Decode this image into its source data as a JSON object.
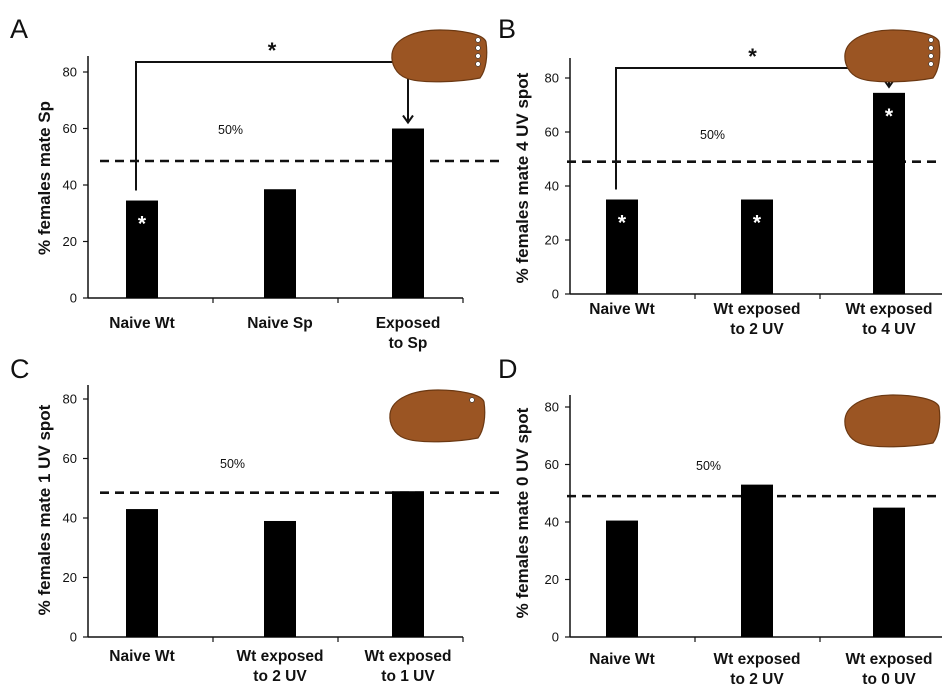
{
  "colors": {
    "bar": "#000000",
    "axis": "#111111",
    "wing": "#9b5523",
    "wing_stroke": "#6b3812",
    "spot": "#ffffff"
  },
  "chart_data": [
    {
      "type": "bar",
      "panel": "A",
      "ylabel": "% females mate Sp",
      "ylim": [
        0,
        85
      ],
      "yticks": [
        0,
        20,
        40,
        60,
        80
      ],
      "categories": [
        [
          "Naive Wt"
        ],
        [
          "Naive Sp"
        ],
        [
          "Exposed",
          "to Sp"
        ]
      ],
      "values": [
        34.5,
        38.5,
        60
      ],
      "bar_stars": [
        true,
        false,
        false
      ],
      "reference": {
        "value": 48.5,
        "label": "50%"
      },
      "comparison": {
        "from": 0,
        "to": 2,
        "label": "*"
      },
      "wing_icon": {
        "name": "wing-4-uv-spots-icon",
        "spots": 4
      }
    },
    {
      "type": "bar",
      "panel": "B",
      "ylabel": "% females mate 4 UV spot",
      "ylim": [
        0,
        85
      ],
      "yticks": [
        0,
        20,
        40,
        60,
        80
      ],
      "categories": [
        [
          "Naive Wt"
        ],
        [
          "Wt exposed",
          "to 2 UV"
        ],
        [
          "Wt exposed",
          "to 4 UV"
        ]
      ],
      "values": [
        35,
        35,
        74.5
      ],
      "bar_stars": [
        true,
        true,
        true
      ],
      "reference": {
        "value": 49,
        "label": "50%"
      },
      "comparison": {
        "from": 0,
        "to": 2,
        "label": "*"
      },
      "wing_icon": {
        "name": "wing-4-uv-spots-icon",
        "spots": 4
      }
    },
    {
      "type": "bar",
      "panel": "C",
      "ylabel": "% females mate 1 UV spot",
      "ylim": [
        0,
        85
      ],
      "yticks": [
        0,
        20,
        40,
        60,
        80
      ],
      "categories": [
        [
          "Naive Wt"
        ],
        [
          "Wt exposed",
          "to 2 UV"
        ],
        [
          "Wt exposed",
          "to 1 UV"
        ]
      ],
      "values": [
        43,
        39,
        49
      ],
      "bar_stars": [
        false,
        false,
        false
      ],
      "reference": {
        "value": 48.5,
        "label": "50%"
      },
      "comparison": null,
      "wing_icon": {
        "name": "wing-1-uv-spot-icon",
        "spots": 1
      }
    },
    {
      "type": "bar",
      "panel": "D",
      "ylabel": "% females mate 0 UV spot",
      "ylim": [
        0,
        87
      ],
      "yticks": [
        0,
        20,
        40,
        60,
        80
      ],
      "categories": [
        [
          "Naive Wt"
        ],
        [
          "Wt exposed",
          "to 2 UV"
        ],
        [
          "Wt exposed",
          "to 0 UV"
        ]
      ],
      "values": [
        40.5,
        53,
        45
      ],
      "bar_stars": [
        false,
        false,
        false
      ],
      "reference": {
        "value": 49,
        "label": "50%"
      },
      "comparison": null,
      "wing_icon": {
        "name": "wing-0-uv-spot-icon",
        "spots": 0
      }
    }
  ]
}
